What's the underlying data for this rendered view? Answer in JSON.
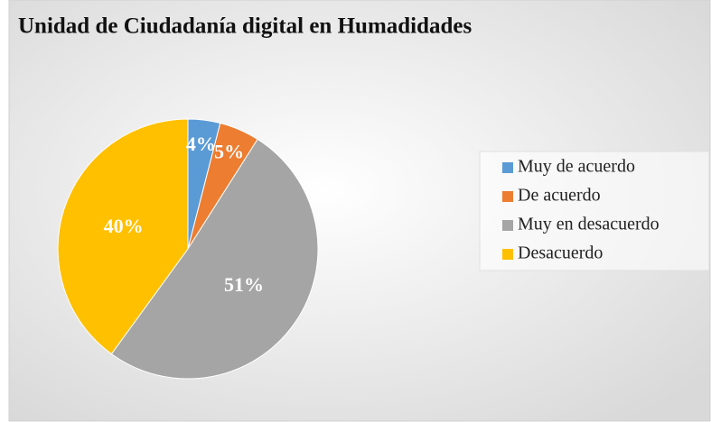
{
  "chart_data": {
    "type": "pie",
    "title": "Unidad de Ciudadanía digital en Humadidades",
    "categories": [
      "Muy de acuerdo",
      "De acuerdo",
      "Muy en desacuerdo",
      "Desacuerdo"
    ],
    "values": [
      4,
      5,
      51,
      40
    ],
    "value_labels": [
      "4%",
      "5%",
      "51%",
      "40%"
    ],
    "colors": [
      "#5b9bd5",
      "#ed7d31",
      "#a5a5a5",
      "#ffc000"
    ],
    "legend": "right"
  }
}
